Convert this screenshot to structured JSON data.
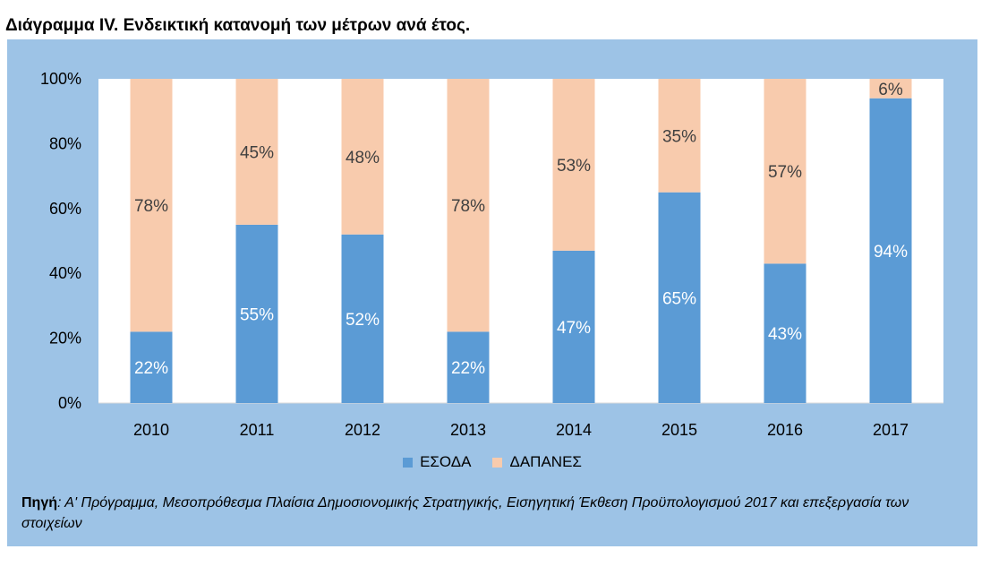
{
  "title": "Διάγραμμα IV. Ενδεικτική κατανομή των μέτρων ανά έτος.",
  "source": {
    "label": "Πηγή",
    "text": ": Α' Πρόγραμμα, Μεσοπρόθεσμα Πλαίσια Δημοσιονομικής Στρατηγικής, Εισηγητική Έκθεση Προϋπολογισμού 2017 και επεξεργασία των στοιχείων"
  },
  "colors": {
    "panel": "#9dc3e6",
    "esoda": "#5b9bd5",
    "dapanes": "#f8cbad"
  },
  "chart_data": {
    "type": "bar",
    "stacked": true,
    "percent": true,
    "title": "",
    "xlabel": "",
    "ylabel": "",
    "ylim": [
      0,
      100
    ],
    "yticks": [
      "0%",
      "20%",
      "40%",
      "60%",
      "80%",
      "100%"
    ],
    "categories": [
      "2010",
      "2011",
      "2012",
      "2013",
      "2014",
      "2015",
      "2016",
      "2017"
    ],
    "series": [
      {
        "name": "ΕΣΟΔΑ",
        "values": [
          22,
          55,
          52,
          22,
          47,
          65,
          43,
          94
        ],
        "labels": [
          "22%",
          "55%",
          "52%",
          "22%",
          "47%",
          "65%",
          "43%",
          "94%"
        ]
      },
      {
        "name": "ΔΑΠΑΝΕΣ",
        "values": [
          78,
          45,
          48,
          78,
          53,
          35,
          57,
          6
        ],
        "labels": [
          "78%",
          "45%",
          "48%",
          "78%",
          "53%",
          "35%",
          "57%",
          "6%"
        ]
      }
    ],
    "legend": "bottom",
    "grid": false
  }
}
